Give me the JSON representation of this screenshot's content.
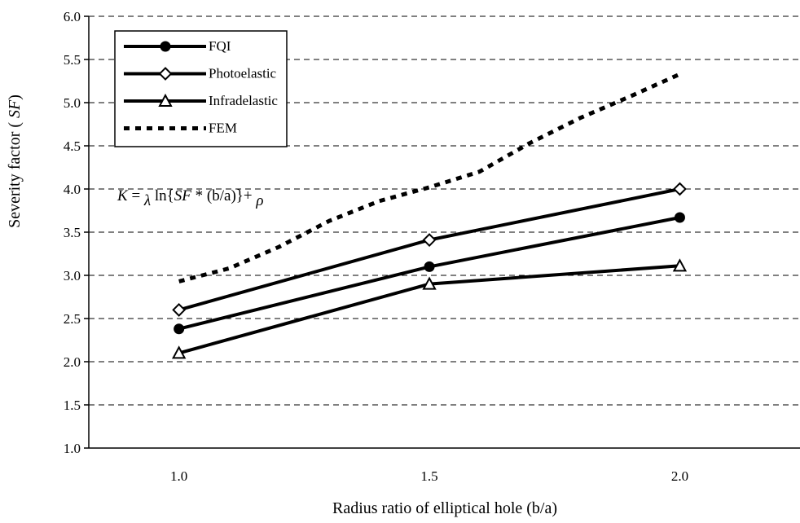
{
  "chart_data": {
    "type": "line",
    "xlabel": "Radius ratio of elliptical hole (b/a)",
    "ylabel_parts": {
      "main": "Severity factor ( ",
      "italic": "SF",
      "end": ")"
    },
    "x_ticks": [
      "1.0",
      "1.5",
      "2.0"
    ],
    "y_ticks": [
      "1.0",
      "1.5",
      "2.0",
      "2.5",
      "3.0",
      "3.5",
      "4.0",
      "4.5",
      "5.0",
      "5.5",
      "6.0"
    ],
    "xlim": [
      0.82,
      2.24
    ],
    "ylim": [
      1.0,
      6.0
    ],
    "y_grid": true,
    "legend_placement": "top-left",
    "formula_parts": {
      "k": "K",
      "eq": " = ",
      "lambda": "λ",
      "ln": " ln{",
      "sf": "SF",
      "rest": " * (b/a)}+ ",
      "rho": "ρ"
    },
    "series": [
      {
        "name": "FQI",
        "marker": "circle",
        "dash": false,
        "x": [
          1.0,
          1.5,
          2.0
        ],
        "values": [
          2.38,
          3.1,
          3.67
        ]
      },
      {
        "name": "Photoelastic",
        "marker": "diamond",
        "dash": false,
        "x": [
          1.0,
          1.5,
          2.0
        ],
        "values": [
          2.6,
          3.41,
          4.0
        ]
      },
      {
        "name": "Infradelastic",
        "marker": "triangle",
        "dash": false,
        "x": [
          1.0,
          1.5,
          2.0
        ],
        "values": [
          2.1,
          2.9,
          3.11
        ]
      },
      {
        "name": "FEM",
        "marker": "none",
        "dash": true,
        "x": [
          1.0,
          1.1,
          1.2,
          1.3,
          1.4,
          1.5,
          1.6,
          1.7,
          1.8,
          1.9,
          2.0
        ],
        "values": [
          2.93,
          3.08,
          3.33,
          3.63,
          3.86,
          4.02,
          4.2,
          4.53,
          4.82,
          5.07,
          5.33
        ]
      }
    ]
  }
}
